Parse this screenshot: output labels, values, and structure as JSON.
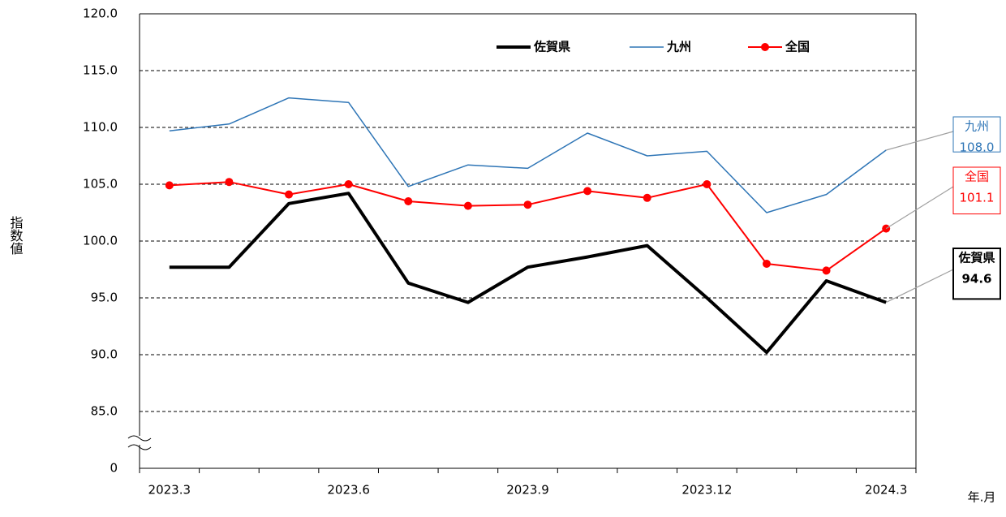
{
  "chart_data": {
    "type": "line",
    "y_label": "指数値",
    "x_label": "年.月",
    "categories": [
      "2023.3",
      null,
      null,
      "2023.6",
      null,
      null,
      "2023.9",
      null,
      null,
      "2023.12",
      null,
      null,
      "2024.3"
    ],
    "series": [
      {
        "name": "佐賀県",
        "color": "#000000",
        "width": 4,
        "markers": false,
        "values": [
          97.7,
          97.7,
          103.3,
          104.2,
          96.3,
          94.6,
          97.7,
          98.6,
          99.6,
          95.0,
          90.2,
          96.5,
          94.6
        ],
        "value_labels": [
          null,
          null,
          null,
          null,
          null,
          null,
          null,
          null,
          null,
          null,
          null,
          null,
          "94.6"
        ]
      },
      {
        "name": "九州",
        "color": "#2e75b6",
        "width": 1.5,
        "markers": false,
        "values": [
          109.7,
          110.3,
          112.6,
          112.2,
          104.8,
          106.7,
          106.4,
          109.5,
          107.5,
          107.9,
          102.5,
          104.1,
          108.0
        ],
        "value_labels": [
          null,
          null,
          null,
          null,
          null,
          null,
          null,
          null,
          null,
          null,
          null,
          null,
          "108.0"
        ]
      },
      {
        "name": "全国",
        "color": "#ff0000",
        "width": 2,
        "markers": true,
        "values": [
          104.9,
          105.2,
          104.1,
          105.0,
          103.5,
          103.1,
          103.2,
          104.4,
          103.8,
          105.0,
          98.0,
          97.4,
          101.1
        ],
        "value_labels": [
          null,
          null,
          null,
          null,
          null,
          null,
          null,
          null,
          null,
          null,
          null,
          null,
          "101.1"
        ]
      }
    ],
    "ylim": [
      0,
      120
    ],
    "y_break": [
      0,
      85
    ],
    "yticks": [
      {
        "value": 0,
        "label": "0"
      },
      {
        "value": 85,
        "label": "85.0"
      },
      {
        "value": 90,
        "label": "90.0"
      },
      {
        "value": 95,
        "label": "95.0"
      },
      {
        "value": 100,
        "label": "100.0"
      },
      {
        "value": 105,
        "label": "105.0"
      },
      {
        "value": 110,
        "label": "110.0"
      },
      {
        "value": 115,
        "label": "115.0"
      },
      {
        "value": 120,
        "label": "120.0"
      }
    ],
    "grid": true
  }
}
